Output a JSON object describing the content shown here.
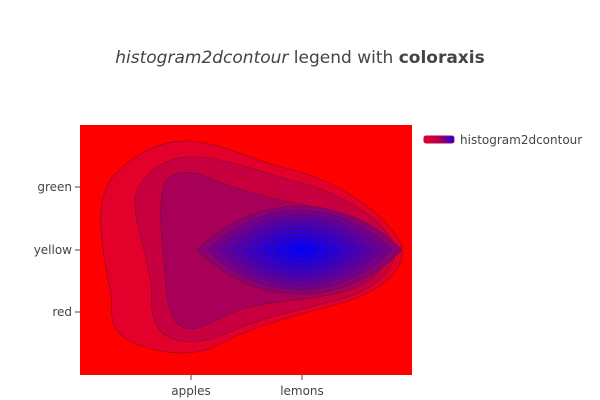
{
  "chart_data": {
    "type": "histogram2dcontour",
    "title": {
      "part1": "histogram2dcontour",
      "part2": " legend with ",
      "part3": "coloraxis"
    },
    "x_categories": [
      "apples",
      "lemons"
    ],
    "y_categories": [
      "red",
      "yellow",
      "green"
    ],
    "legend": {
      "placement": "top-right",
      "entries": [
        {
          "name": "histogram2dcontour",
          "colors": [
            "#e3002a",
            "#0000ff"
          ]
        }
      ]
    },
    "coloraxis": {
      "colorscale": [
        "#ff0000",
        "#0000ff"
      ]
    },
    "peak": {
      "x": "lemons",
      "y": "yellow"
    },
    "contour_levels": 13
  }
}
